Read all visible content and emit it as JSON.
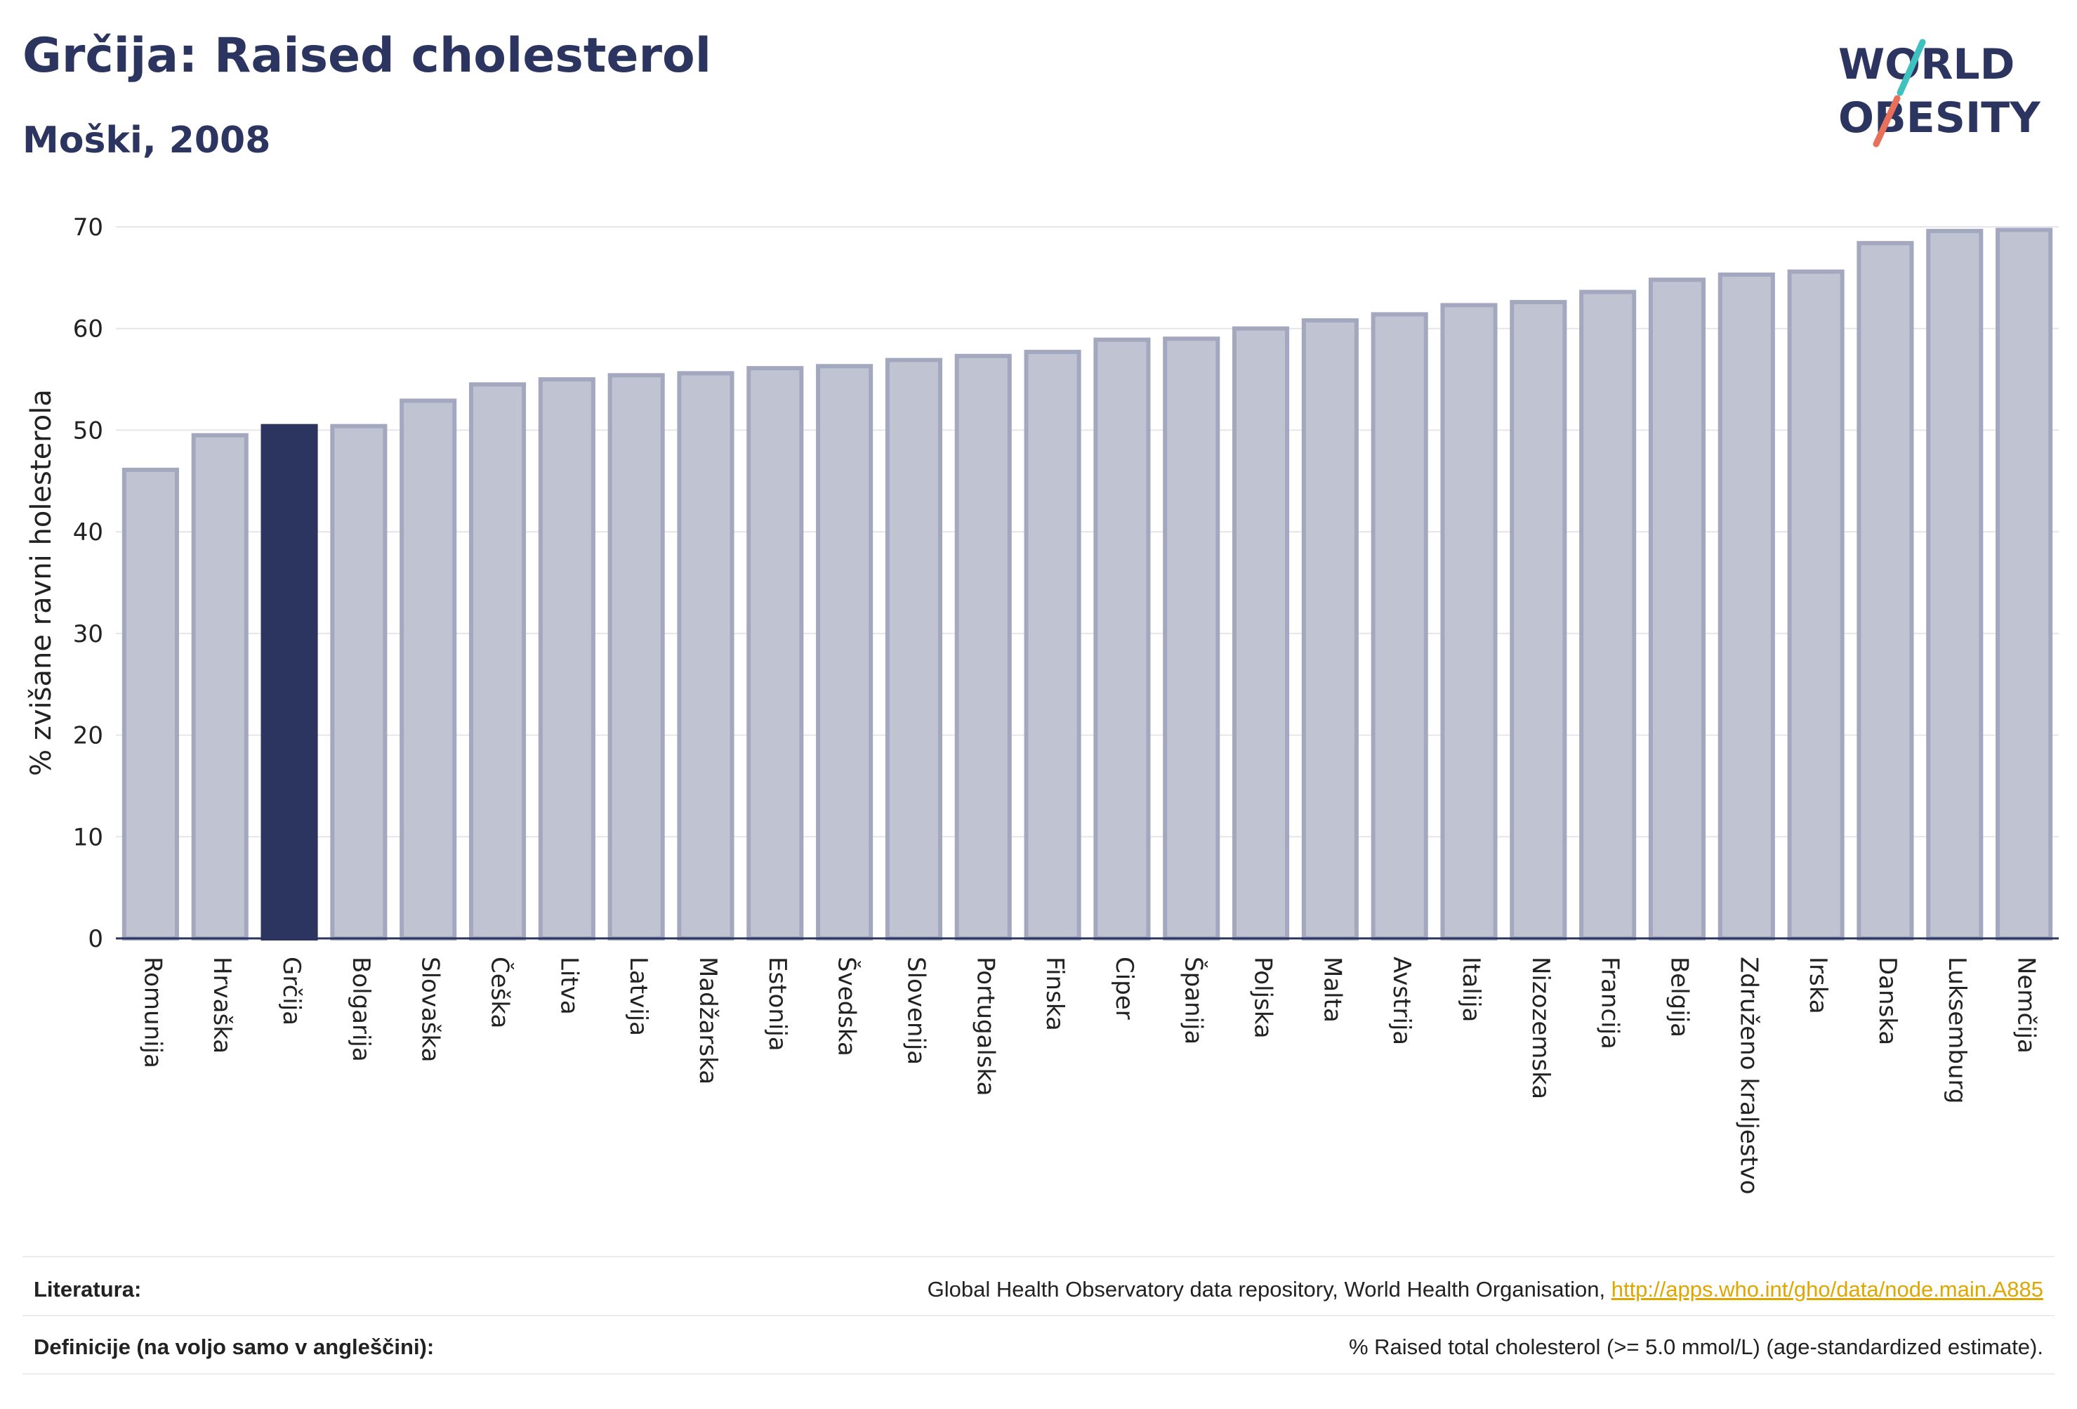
{
  "header": {
    "title": "Grčija: Raised cholesterol",
    "subtitle": "Moški, 2008"
  },
  "logo": {
    "line1": "WORLD",
    "line2": "OBESITY"
  },
  "chart_data": {
    "type": "bar",
    "ylabel": "% zvišane ravni holesterola",
    "xlabel": "",
    "ylim": [
      0,
      70
    ],
    "yticks": [
      0,
      10,
      20,
      30,
      40,
      50,
      60,
      70
    ],
    "grid": true,
    "highlight": "Grčija",
    "colors": {
      "bar": "#c0c3d1",
      "bar_edge": "#a3a8bf",
      "highlight": "#2b3560",
      "axis": "#2b3560"
    },
    "categories": [
      "Romunija",
      "Hrvaška",
      "Grčija",
      "Bolgarija",
      "Slovaška",
      "Češka",
      "Litva",
      "Latvija",
      "Madžarska",
      "Estonija",
      "Švedska",
      "Slovenija",
      "Portugalska",
      "Finska",
      "Ciper",
      "Španija",
      "Poljska",
      "Malta",
      "Avstrija",
      "Italija",
      "Nizozemska",
      "Francija",
      "Belgija",
      "Združeno kraljestvo",
      "Irska",
      "Danska",
      "Luksemburg",
      "Nemčija"
    ],
    "values": [
      46.1,
      49.5,
      50.4,
      50.4,
      52.9,
      54.5,
      55.0,
      55.4,
      55.6,
      56.1,
      56.3,
      56.9,
      57.3,
      57.7,
      58.9,
      59.0,
      60.0,
      60.8,
      61.4,
      62.3,
      62.6,
      63.6,
      64.8,
      65.3,
      65.6,
      68.4,
      69.6,
      69.7
    ]
  },
  "footer": {
    "sources_label": "Literatura:",
    "sources_text": "Global Health Observatory data repository, World Health Organisation, ",
    "sources_link": "http://apps.who.int/gho/data/node.main.A885",
    "definitions_label": "Definicije (na voljo samo v angleščini):",
    "definitions_text": "% Raised total cholesterol (>= 5.0 mmol/L) (age-standardized estimate)."
  }
}
